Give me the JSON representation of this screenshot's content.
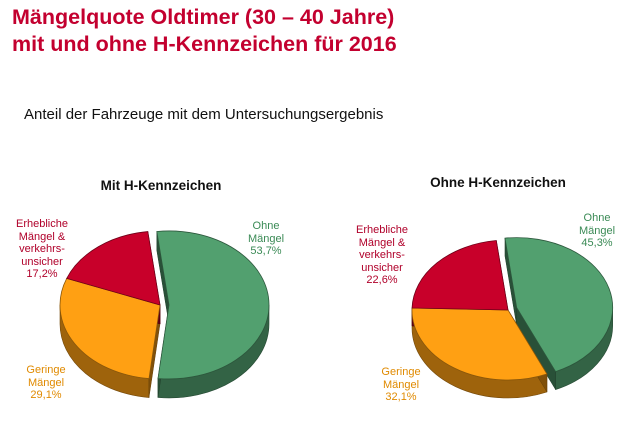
{
  "title_line1": "Mängelquote Oldtimer (30 – 40 Jahre)",
  "title_line2": "mit und ohne H-Kennzeichen für 2016",
  "subtitle": "Anteil der Fahrzeuge mit dem Untersuchungsergebnis",
  "colors": {
    "title": "#c3002f",
    "ohne_maengel": "#52a06f",
    "geringe_maengel": "#ffa013",
    "erhebliche_maengel": "#c8002a"
  },
  "chart_data": [
    {
      "type": "pie",
      "title": "Mit H-Kennzeichen",
      "slices": [
        {
          "key": "ohne",
          "label_lines": [
            "Ohne",
            "Mängel"
          ],
          "value_text": "53,7%",
          "value": 53.7,
          "color": "#52a06f"
        },
        {
          "key": "geringe",
          "label_lines": [
            "Geringe",
            "Mängel"
          ],
          "value_text": "29,1%",
          "value": 29.1,
          "color": "#ffa013"
        },
        {
          "key": "erhebliche",
          "label_lines": [
            "Erhebliche",
            "Mängel &",
            "verkehrs-",
            "unsicher"
          ],
          "value_text": "17,2%",
          "value": 17.2,
          "color": "#c8002a"
        }
      ],
      "exploded": "Ohne Mängel",
      "style": "3d"
    },
    {
      "type": "pie",
      "title": "Ohne H-Kennzeichen",
      "slices": [
        {
          "key": "ohne",
          "label_lines": [
            "Ohne",
            "Mängel"
          ],
          "value_text": "45,3%",
          "value": 45.3,
          "color": "#52a06f"
        },
        {
          "key": "geringe",
          "label_lines": [
            "Geringe",
            "Mängel"
          ],
          "value_text": "32,1%",
          "value": 32.1,
          "color": "#ffa013"
        },
        {
          "key": "erhebliche",
          "label_lines": [
            "Erhebliche",
            "Mängel &",
            "verkehrs-",
            "unsicher"
          ],
          "value_text": "22,6%",
          "value": 22.6,
          "color": "#c8002a"
        }
      ],
      "exploded": "Ohne Mängel",
      "style": "3d"
    }
  ]
}
